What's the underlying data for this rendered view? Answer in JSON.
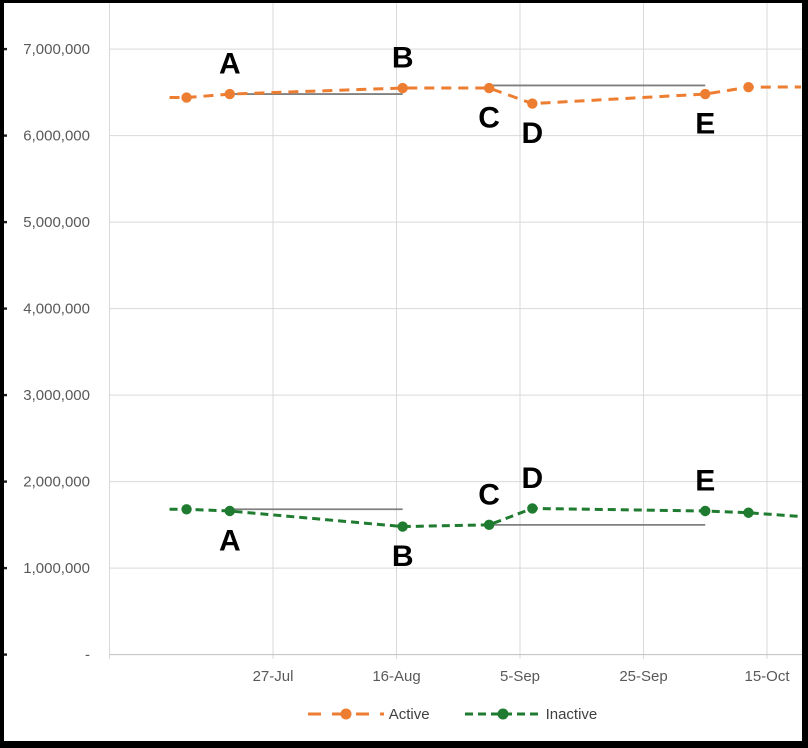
{
  "window": {
    "background": "#ffffff",
    "frame_border_color": "#000000"
  },
  "chart_data": {
    "type": "line",
    "title": "",
    "xlabel": "",
    "ylabel": "",
    "grid": true,
    "x_axis": {
      "tick_labels": [
        "27-Jul",
        "16-Aug",
        "5-Sep",
        "25-Sep",
        "15-Oct"
      ]
    },
    "y_axis": {
      "tick_labels": [
        "-",
        "1,000,000",
        "2,000,000",
        "3,000,000",
        "4,000,000",
        "5,000,000",
        "6,000,000",
        "7,000,000"
      ],
      "tick_values": [
        0,
        1000000,
        2000000,
        3000000,
        4000000,
        5000000,
        6000000,
        7000000
      ],
      "range": [
        0,
        7300000
      ]
    },
    "series": [
      {
        "name": "Active",
        "color": "#ED7D31",
        "line_style": "dashed",
        "points": [
          {
            "date": "13-Jul",
            "value": 6440000
          },
          {
            "date": "20-Jul",
            "value": 6480000
          },
          {
            "date": "17-Aug",
            "value": 6550000
          },
          {
            "date": "31-Aug",
            "value": 6550000
          },
          {
            "date": "7-Sep",
            "value": 6370000
          },
          {
            "date": "5-Oct",
            "value": 6480000
          },
          {
            "date": "12-Oct",
            "value": 6560000
          }
        ]
      },
      {
        "name": "Inactive",
        "color": "#1F7B2F",
        "line_style": "dashed",
        "points": [
          {
            "date": "13-Jul",
            "value": 1680000
          },
          {
            "date": "20-Jul",
            "value": 1660000
          },
          {
            "date": "17-Aug",
            "value": 1480000
          },
          {
            "date": "31-Aug",
            "value": 1500000
          },
          {
            "date": "7-Sep",
            "value": 1690000
          },
          {
            "date": "5-Oct",
            "value": 1660000
          },
          {
            "date": "12-Oct",
            "value": 1640000
          }
        ]
      }
    ],
    "annotations": [
      {
        "label": "A",
        "series": "Active",
        "date": "20-Jul",
        "position": "above"
      },
      {
        "label": "B",
        "series": "Active",
        "date": "17-Aug",
        "position": "above"
      },
      {
        "label": "C",
        "series": "Active",
        "date": "31-Aug",
        "position": "below"
      },
      {
        "label": "D",
        "series": "Active",
        "date": "7-Sep",
        "position": "below"
      },
      {
        "label": "E",
        "series": "Active",
        "date": "5-Oct",
        "position": "below"
      },
      {
        "label": "A",
        "series": "Inactive",
        "date": "20-Jul",
        "position": "below"
      },
      {
        "label": "B",
        "series": "Inactive",
        "date": "17-Aug",
        "position": "below"
      },
      {
        "label": "C",
        "series": "Inactive",
        "date": "31-Aug",
        "position": "above"
      },
      {
        "label": "D",
        "series": "Inactive",
        "date": "7-Sep",
        "position": "above"
      },
      {
        "label": "E",
        "series": "Inactive",
        "date": "5-Oct",
        "position": "above"
      }
    ],
    "reference_lines": [
      {
        "series": "Active",
        "from": "20-Jul",
        "to": "17-Aug",
        "level": 6480000,
        "color": "#808080"
      },
      {
        "series": "Active",
        "from": "31-Aug",
        "to": "5-Oct",
        "level": 6580000,
        "color": "#808080"
      },
      {
        "series": "Inactive",
        "from": "20-Jul",
        "to": "17-Aug",
        "level": 1680000,
        "color": "#808080"
      },
      {
        "series": "Inactive",
        "from": "31-Aug",
        "to": "5-Oct",
        "level": 1500000,
        "color": "#808080"
      }
    ],
    "legend": {
      "position": "bottom",
      "items": [
        "Active",
        "Inactive"
      ]
    },
    "colors": {
      "gridline": "#D9D9D9",
      "axis_line": "#BFBFBF",
      "tick_label": "#595959",
      "annotation_text": "#000000",
      "reference_line": "#808080"
    }
  }
}
